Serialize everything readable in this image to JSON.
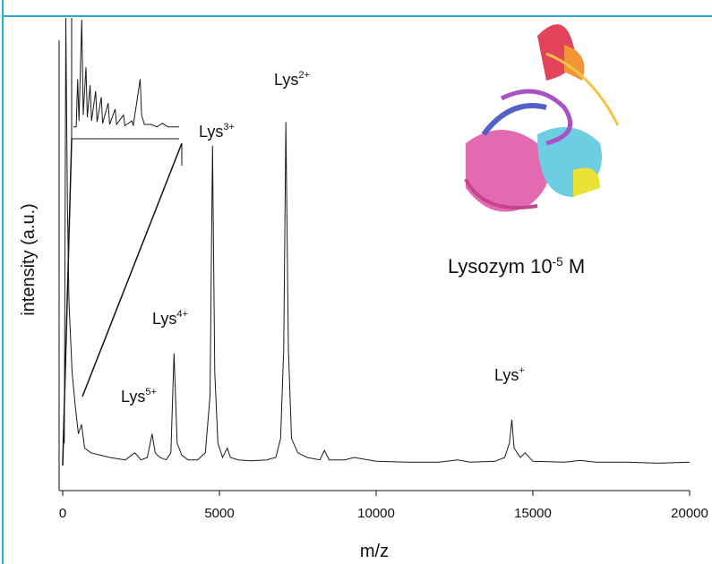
{
  "chart_data": [
    {
      "type": "line",
      "xlabel": "m/z",
      "ylabel": "intensity (a.u.)",
      "color": "#1a1a1a",
      "xlim": [
        0,
        20000
      ],
      "ylim": [
        0,
        100
      ],
      "xticks": [
        0,
        5000,
        10000,
        15000,
        20000
      ],
      "x": [
        50,
        100,
        150,
        200,
        300,
        400,
        500,
        600,
        700,
        900,
        1200,
        1500,
        2000,
        2300,
        2500,
        2700,
        2850,
        2950,
        3100,
        3300,
        3450,
        3550,
        3650,
        3800,
        4000,
        4300,
        4550,
        4700,
        4780,
        4850,
        4950,
        5100,
        5250,
        5350,
        5600,
        6000,
        6500,
        6800,
        6950,
        7050,
        7120,
        7200,
        7300,
        7500,
        7800,
        8200,
        8350,
        8500,
        9000,
        9300,
        10000,
        11000,
        12000,
        12600,
        13000,
        13800,
        14100,
        14250,
        14330,
        14400,
        14600,
        14750,
        15000,
        16000,
        16500,
        17000,
        18000,
        19000,
        20000
      ],
      "values": [
        10,
        100,
        60,
        40,
        25,
        18,
        12,
        14,
        9,
        8,
        7.5,
        7,
        6.5,
        8,
        6.5,
        7,
        12,
        8,
        7,
        6.5,
        8,
        29,
        10,
        7.5,
        6.5,
        6.5,
        8,
        20,
        73,
        25,
        10,
        7,
        9,
        7,
        6.5,
        6.3,
        6.5,
        7,
        11,
        30,
        78,
        30,
        11,
        8,
        7,
        6.5,
        8.5,
        6.5,
        6.5,
        7,
        6.2,
        6,
        6,
        6.5,
        6,
        6.2,
        7,
        10,
        15,
        9,
        7,
        8,
        6.2,
        6,
        6.4,
        6,
        6,
        5.8,
        6
      ],
      "annotations": [
        {
          "text": "Lys",
          "sup": "2+"
        },
        {
          "text": "Lys",
          "sup": "3+"
        },
        {
          "text": "Lys",
          "sup": "4+"
        },
        {
          "text": "Lys",
          "sup": "5+"
        },
        {
          "text": "Lys",
          "sup": "+"
        },
        {
          "text": "Lysozym 10",
          "sup": "-5",
          "after": " M"
        }
      ]
    },
    {
      "type": "line",
      "color": "#1a1a1a",
      "xlim": [
        0,
        3800
      ],
      "ylim": [
        0,
        100
      ],
      "x": [
        0,
        100,
        150,
        200,
        300,
        350,
        450,
        500,
        600,
        650,
        800,
        850,
        1000,
        1050,
        1250,
        1300,
        1500,
        1550,
        1800,
        1850,
        2100,
        2150,
        2400,
        2450,
        2550,
        2800,
        3000,
        3200,
        3400,
        3800
      ],
      "values": [
        10,
        10,
        50,
        15,
        100,
        20,
        60,
        18,
        45,
        15,
        40,
        14,
        35,
        13,
        30,
        12,
        25,
        12,
        20,
        11,
        15,
        11,
        50,
        20,
        12,
        12,
        10,
        13,
        10,
        10
      ]
    }
  ]
}
